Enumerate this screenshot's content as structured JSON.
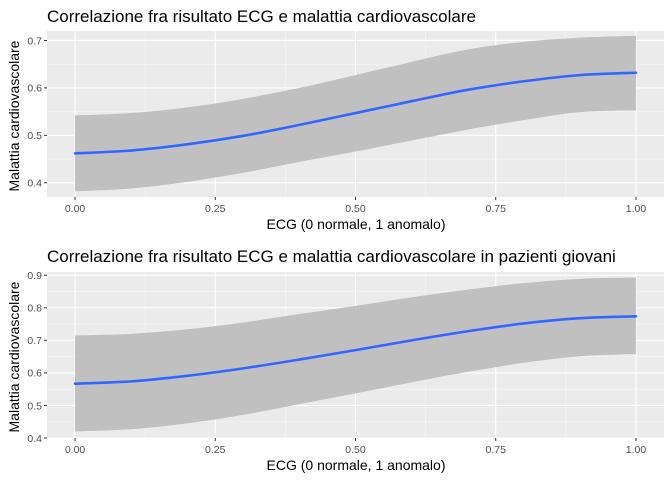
{
  "colors": {
    "panel_bg": "#ebebeb",
    "grid_major": "#ffffff",
    "band": "#bebebe",
    "line": "#3366ff",
    "tick": "#333333"
  },
  "chart_data": [
    {
      "type": "line",
      "title": "Correlazione fra risultato ECG e malattia cardiovascolare",
      "xlabel": "ECG (0 normale, 1 anomalo)",
      "ylabel": "Malattia cardiovascolare",
      "xlim": [
        -0.05,
        1.05
      ],
      "ylim": [
        0.37,
        0.72
      ],
      "x_ticks": [
        0.0,
        0.25,
        0.5,
        0.75,
        1.0
      ],
      "x_tick_labels": [
        "0.00",
        "0.25",
        "0.50",
        "0.75",
        "1.00"
      ],
      "y_ticks": [
        0.4,
        0.5,
        0.6,
        0.7
      ],
      "y_tick_labels": [
        "0.4",
        "0.5",
        "0.6",
        "0.7"
      ],
      "grid": true,
      "series": [
        {
          "x": [
            0.0,
            0.1,
            0.2,
            0.3,
            0.4,
            0.5,
            0.6,
            0.7,
            0.8,
            0.9,
            1.0
          ],
          "y": [
            0.462,
            0.468,
            0.481,
            0.499,
            0.522,
            0.547,
            0.572,
            0.596,
            0.614,
            0.627,
            0.632
          ],
          "ymin": [
            0.382,
            0.388,
            0.402,
            0.421,
            0.444,
            0.466,
            0.489,
            0.512,
            0.532,
            0.549,
            0.553
          ],
          "ymax": [
            0.542,
            0.547,
            0.559,
            0.577,
            0.6,
            0.627,
            0.655,
            0.681,
            0.697,
            0.706,
            0.71
          ]
        }
      ]
    },
    {
      "type": "line",
      "title": "Correlazione fra risultato ECG e malattia cardiovascolare in pazienti giovani",
      "xlabel": "ECG (0 normale, 1 anomalo)",
      "ylabel": "Malattia cardiovascolare",
      "xlim": [
        -0.05,
        1.05
      ],
      "ylim": [
        0.4,
        0.91
      ],
      "x_ticks": [
        0.0,
        0.25,
        0.5,
        0.75,
        1.0
      ],
      "x_tick_labels": [
        "0.00",
        "0.25",
        "0.50",
        "0.75",
        "1.00"
      ],
      "y_ticks": [
        0.4,
        0.5,
        0.6,
        0.7,
        0.8,
        0.9
      ],
      "y_tick_labels": [
        "0.4",
        "0.5",
        "0.6",
        "0.7",
        "0.8",
        "0.9"
      ],
      "grid": true,
      "series": [
        {
          "x": [
            0.0,
            0.1,
            0.2,
            0.3,
            0.4,
            0.5,
            0.6,
            0.7,
            0.8,
            0.9,
            1.0
          ],
          "y": [
            0.567,
            0.574,
            0.591,
            0.614,
            0.641,
            0.67,
            0.7,
            0.728,
            0.752,
            0.768,
            0.774
          ],
          "ymin": [
            0.42,
            0.427,
            0.445,
            0.471,
            0.504,
            0.537,
            0.571,
            0.603,
            0.631,
            0.651,
            0.658
          ],
          "ymax": [
            0.715,
            0.72,
            0.734,
            0.755,
            0.781,
            0.806,
            0.832,
            0.856,
            0.876,
            0.889,
            0.893
          ]
        }
      ]
    }
  ]
}
